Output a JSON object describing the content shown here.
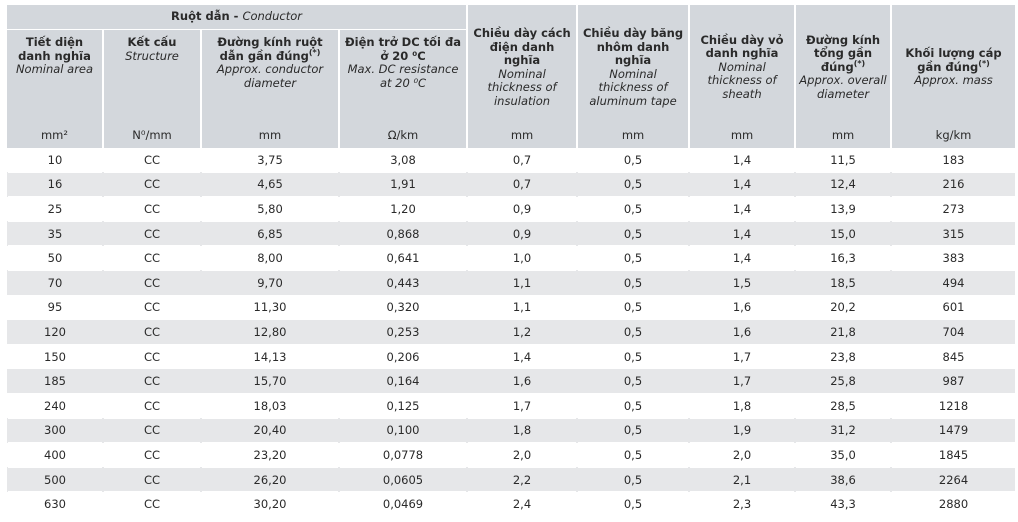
{
  "header": {
    "group": {
      "vn": "Ruột dẫn",
      "sep": " - ",
      "en": "Conductor"
    },
    "columns": [
      {
        "vn": "Tiết diện danh nghĩa",
        "en": "Nominal area",
        "unit": "mm²"
      },
      {
        "vn": "Kết cấu",
        "en": "Structure",
        "unit": "N⁰/mm"
      },
      {
        "vn": "Đường kính ruột dẫn gần đúng",
        "sup": "(*)",
        "en": "Approx. conductor diameter",
        "unit": "mm"
      },
      {
        "vn": "Điện trở DC tối đa ở 20 ⁰C",
        "en": "Max. DC resistance at 20 ⁰C",
        "unit": "Ω/km"
      },
      {
        "vn": "Chiều dày cách điện danh nghĩa",
        "en": "Nominal thickness of insulation",
        "unit": "mm"
      },
      {
        "vn": "Chiều dày băng nhôm danh nghĩa",
        "en": "Nominal thickness of aluminum tape",
        "unit": "mm"
      },
      {
        "vn": "Chiều dày vỏ danh nghĩa",
        "en": "Nominal thickness of sheath",
        "unit": "mm"
      },
      {
        "vn": "Đường kính tổng gần đúng",
        "sup": "(*)",
        "en": "Approx. overall diameter",
        "unit": "mm"
      },
      {
        "vn": "Khối lượng cáp gần đúng",
        "sup": "(*)",
        "en": "Approx. mass",
        "unit": "kg/km"
      }
    ]
  },
  "rows": [
    [
      "10",
      "CC",
      "3,75",
      "3,08",
      "0,7",
      "0,5",
      "1,4",
      "11,5",
      "183"
    ],
    [
      "16",
      "CC",
      "4,65",
      "1,91",
      "0,7",
      "0,5",
      "1,4",
      "12,4",
      "216"
    ],
    [
      "25",
      "CC",
      "5,80",
      "1,20",
      "0,9",
      "0,5",
      "1,4",
      "13,9",
      "273"
    ],
    [
      "35",
      "CC",
      "6,85",
      "0,868",
      "0,9",
      "0,5",
      "1,4",
      "15,0",
      "315"
    ],
    [
      "50",
      "CC",
      "8,00",
      "0,641",
      "1,0",
      "0,5",
      "1,4",
      "16,3",
      "383"
    ],
    [
      "70",
      "CC",
      "9,70",
      "0,443",
      "1,1",
      "0,5",
      "1,5",
      "18,5",
      "494"
    ],
    [
      "95",
      "CC",
      "11,30",
      "0,320",
      "1,1",
      "0,5",
      "1,6",
      "20,2",
      "601"
    ],
    [
      "120",
      "CC",
      "12,80",
      "0,253",
      "1,2",
      "0,5",
      "1,6",
      "21,8",
      "704"
    ],
    [
      "150",
      "CC",
      "14,13",
      "0,206",
      "1,4",
      "0,5",
      "1,7",
      "23,8",
      "845"
    ],
    [
      "185",
      "CC",
      "15,70",
      "0,164",
      "1,6",
      "0,5",
      "1,7",
      "25,8",
      "987"
    ],
    [
      "240",
      "CC",
      "18,03",
      "0,125",
      "1,7",
      "0,5",
      "1,8",
      "28,5",
      "1218"
    ],
    [
      "300",
      "CC",
      "20,40",
      "0,100",
      "1,8",
      "0,5",
      "1,9",
      "31,2",
      "1479"
    ],
    [
      "400",
      "CC",
      "23,20",
      "0,0778",
      "2,0",
      "0,5",
      "2,0",
      "35,0",
      "1845"
    ],
    [
      "500",
      "CC",
      "26,20",
      "0,0605",
      "2,2",
      "0,5",
      "2,1",
      "38,6",
      "2264"
    ],
    [
      "630",
      "CC",
      "30,20",
      "0,0469",
      "2,4",
      "0,5",
      "2,3",
      "43,3",
      "2880"
    ]
  ]
}
